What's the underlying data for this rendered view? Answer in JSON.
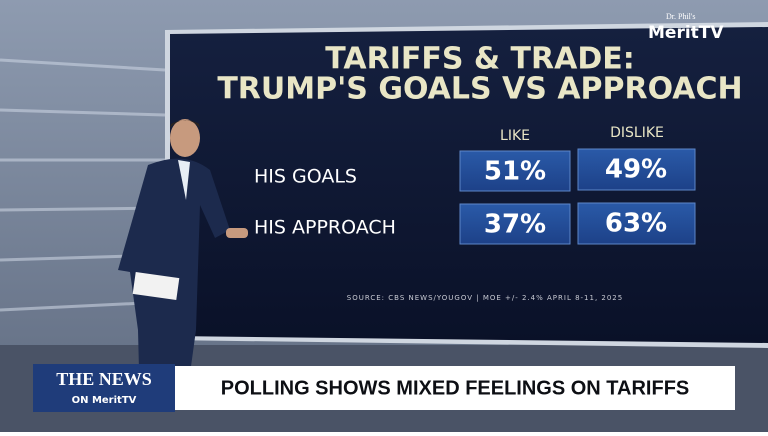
{
  "logo": {
    "small": "Dr. Phil's",
    "brand": "MeritTV"
  },
  "screen": {
    "title": [
      "TARIFFS & TRADE:",
      "TRUMP'S GOALS VS APPROACH"
    ],
    "table": {
      "columns": [
        "LIKE",
        "DISLIKE"
      ],
      "rows": [
        {
          "label": "HIS GOALS",
          "cells": [
            "51%",
            "49%"
          ]
        },
        {
          "label": "HIS APPROACH",
          "cells": [
            "37%",
            "63%"
          ]
        }
      ]
    },
    "source": "SOURCE: CBS NEWS/YOUGOV | MOE +/- 2.4% APRIL 8-11, 2025"
  },
  "lower_third": {
    "show": "THE NEWS",
    "network": "ON MeritTV",
    "headline": "POLLING SHOWS MIXED FEELINGS ON TARIFFS"
  }
}
